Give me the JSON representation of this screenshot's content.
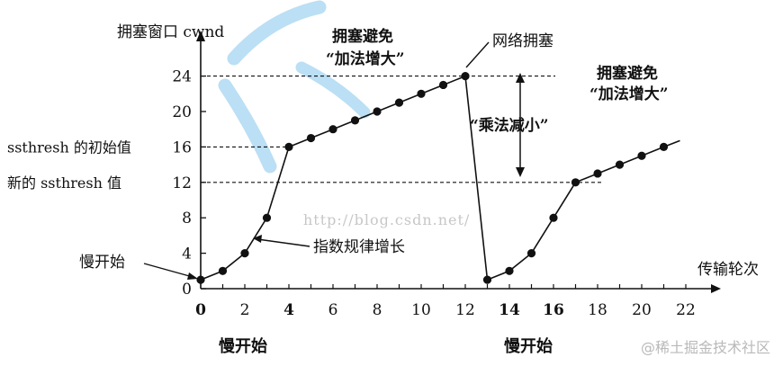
{
  "chart_data": {
    "type": "line",
    "ylabel": "拥塞窗口 cwnd",
    "xlabel": "传输轮次",
    "xlim": [
      0,
      22
    ],
    "ylim": [
      0,
      24
    ],
    "x_ticks": [
      "0",
      "2",
      "4",
      "6",
      "8",
      "10",
      "12",
      "14",
      "16",
      "18",
      "20",
      "22"
    ],
    "y_ticks": [
      "0",
      "4",
      "8",
      "12",
      "16",
      "20",
      "24"
    ],
    "series": [
      {
        "points": [
          [
            0,
            1
          ],
          [
            1,
            2
          ],
          [
            2,
            4
          ],
          [
            3,
            8
          ],
          [
            4,
            16
          ],
          [
            5,
            17
          ],
          [
            6,
            18
          ],
          [
            7,
            19
          ],
          [
            8,
            20
          ],
          [
            9,
            21
          ],
          [
            10,
            22
          ],
          [
            11,
            23
          ],
          [
            12,
            24
          ]
        ]
      },
      {
        "points": [
          [
            13,
            1
          ],
          [
            14,
            2
          ],
          [
            15,
            4
          ],
          [
            16,
            8
          ],
          [
            17,
            12
          ],
          [
            18,
            13
          ],
          [
            19,
            14
          ],
          [
            20,
            15
          ],
          [
            21,
            16
          ]
        ]
      }
    ],
    "reference_lines": [
      {
        "y": 24,
        "label": ""
      },
      {
        "y": 16,
        "label": "ssthresh 的初始值"
      },
      {
        "y": 12,
        "label": "新的 ssthresh 值"
      }
    ],
    "annotations": {
      "congestion_avoid_1": "拥塞避免",
      "additive_increase_1": "“加法增大”",
      "network_congestion": "网络拥塞",
      "multiplicative_decrease": "“乘法减小”",
      "congestion_avoid_2": "拥塞避免",
      "additive_increase_2": "“加法增大”",
      "slow_start_left": "慢开始",
      "exponential_rule": "指数规律增长",
      "slow_start_bottom_1": "慢开始",
      "slow_start_bottom_2": "慢开始",
      "watermark_url": "http://blog.csdn.net/"
    }
  },
  "footer": {
    "attribution": "@稀土掘金技术社区"
  },
  "colors": {
    "ink": "#111111",
    "watermark_blue": "#9ed2ef",
    "watermark_text": "#c7c7c7",
    "footer_text": "#b9b9b9"
  }
}
